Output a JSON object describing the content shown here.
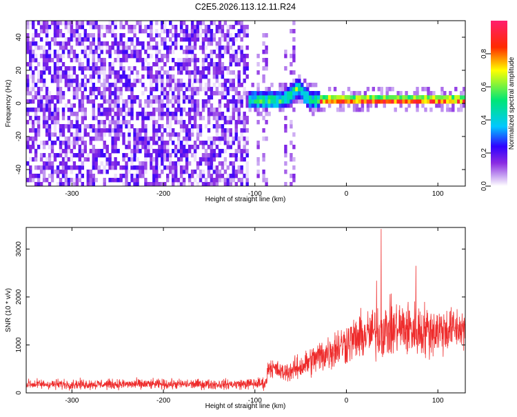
{
  "title": "C2E5.2026.113.12.11.R24",
  "chart_data": [
    {
      "type": "heatmap",
      "xlabel": "Height of straight line (km)",
      "ylabel": "Frequency (Hz)",
      "xlim": [
        -350,
        130
      ],
      "ylim": [
        -50,
        50
      ],
      "xticks": [
        -300,
        -200,
        -100,
        0,
        100
      ],
      "yticks": [
        -40,
        -20,
        0,
        20,
        40
      ],
      "colorbar": {
        "label": "Normalized spectral amplitude",
        "range": [
          0,
          1
        ],
        "ticks": [
          "0.0",
          "0.2",
          "0.4",
          "0.6",
          "0.8"
        ],
        "colormap": "rainbow (purple at 0 to red/magenta at 1)",
        "colors": [
          "#ffffff",
          "#8a2be2",
          "#2f00ff",
          "#00c8ff",
          "#00e676",
          "#ffff00",
          "#ff2a00",
          "#ff1e6e"
        ]
      },
      "features": {
        "noise_region_x": [
          -350,
          -108
        ],
        "noise_amplitude": 0.15,
        "signal_start_x": -108,
        "signal_frequency_hz": 2,
        "signal_bump_x": -55,
        "signal_bump_peak_hz": 9,
        "strong_signal_from_x": -30,
        "sparse_columns_x": [
          -98,
          -90,
          -68,
          -60
        ]
      }
    },
    {
      "type": "line",
      "xlabel": "Height of straight line (km)",
      "ylabel": "SNR (10 * v/v)",
      "xlim": [
        -350,
        130
      ],
      "ylim": [
        0,
        3450
      ],
      "xticks": [
        -300,
        -200,
        -100,
        0,
        100
      ],
      "yticks": [
        0,
        1000,
        2000,
        3000
      ],
      "color": "#ee2b2b",
      "envelope": {
        "x": [
          -350,
          -120,
          -88,
          -85,
          -70,
          -55,
          -40,
          -20,
          0,
          20,
          40,
          60,
          80,
          100,
          130
        ],
        "mean": [
          180,
          180,
          200,
          560,
          420,
          500,
          650,
          850,
          1050,
          1200,
          1300,
          1350,
          1300,
          1300,
          1350
        ],
        "spread": [
          110,
          110,
          140,
          220,
          200,
          260,
          330,
          420,
          470,
          520,
          600,
          620,
          600,
          560,
          420
        ]
      },
      "peaks": [
        {
          "x": 38,
          "y": 3420
        },
        {
          "x": 76,
          "y": 2650
        },
        {
          "x": 33,
          "y": 2340
        }
      ]
    }
  ]
}
